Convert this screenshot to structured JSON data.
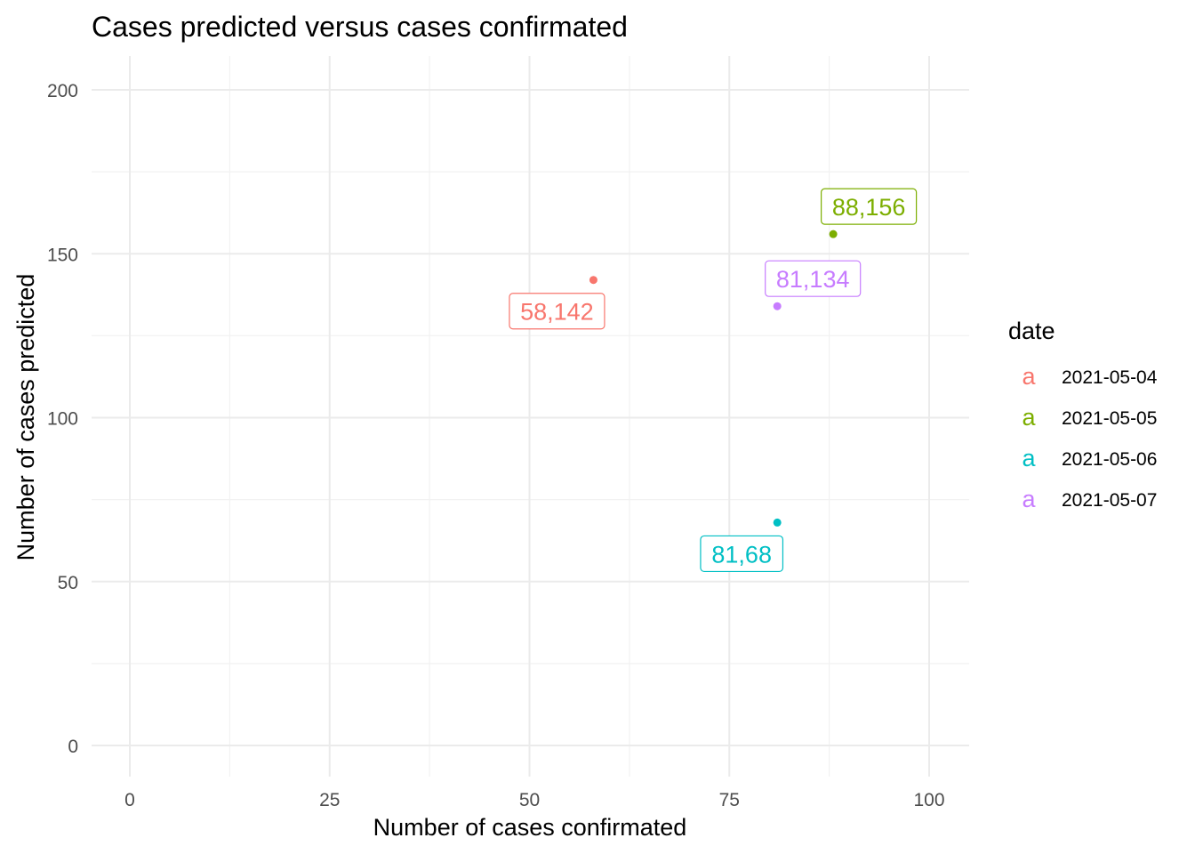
{
  "chart_data": {
    "type": "scatter",
    "title": "Cases predicted versus cases confirmated",
    "xlabel": "Number of cases confirmated",
    "ylabel": "Number of cases predicted",
    "xlim": [
      -9.5,
      100
    ],
    "ylim": [
      -9,
      210
    ],
    "x_ticks": [
      0,
      25,
      50,
      75,
      100
    ],
    "y_ticks": [
      0,
      50,
      100,
      150,
      200
    ],
    "x_tick_labels": [
      "0",
      "25",
      "50",
      "75",
      "100"
    ],
    "y_tick_labels": [
      "0",
      "50",
      "100",
      "150",
      "200"
    ],
    "grid": true,
    "legend": {
      "title": "date",
      "placement": "right",
      "key_glyph": "a",
      "entries": [
        "2021-05-04",
        "2021-05-05",
        "2021-05-06",
        "2021-05-07"
      ]
    },
    "points": [
      {
        "x": 58,
        "y": 142,
        "label": "58,142",
        "date": "2021-05-04",
        "color": "#F8766D"
      },
      {
        "x": 88,
        "y": 156,
        "label": "88,156",
        "date": "2021-05-05",
        "color": "#7CAE00"
      },
      {
        "x": 81,
        "y": 68,
        "label": "81,68",
        "date": "2021-05-06",
        "color": "#00BFC4"
      },
      {
        "x": 81,
        "y": 134,
        "label": "81,134",
        "date": "2021-05-07",
        "color": "#C77CFF"
      }
    ]
  }
}
